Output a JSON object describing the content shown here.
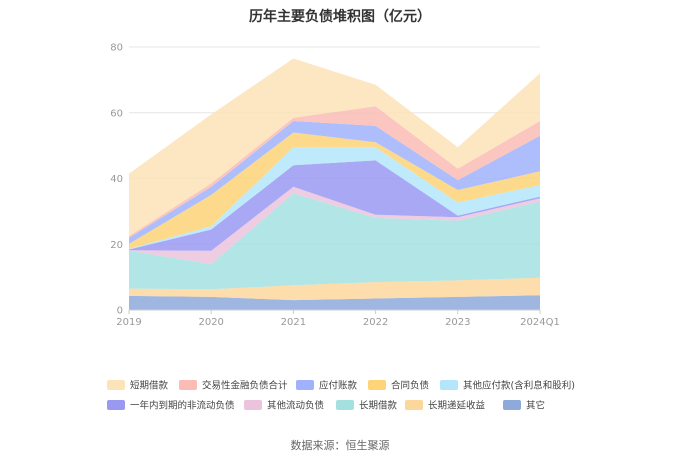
{
  "title": "历年主要负债堆积图（亿元）",
  "source": "数据来源：恒生聚源",
  "chart_data": {
    "type": "area",
    "stacked": true,
    "title": "历年主要负债堆积图（亿元）",
    "xlabel": "",
    "ylabel": "",
    "categories": [
      "2019",
      "2020",
      "2021",
      "2022",
      "2023",
      "2024Q1"
    ],
    "ylim": [
      0,
      80
    ],
    "yticks": [
      0,
      20,
      40,
      60,
      80
    ],
    "grid": true,
    "legend_position": "bottom",
    "series": [
      {
        "name": "其它",
        "color": "#8eaadb",
        "values": [
          4.3,
          4.0,
          3.0,
          3.5,
          4.0,
          4.5
        ]
      },
      {
        "name": "长期递延收益",
        "color": "#fbd79c",
        "values": [
          2.2,
          2.3,
          4.5,
          5.0,
          5.0,
          5.3
        ]
      },
      {
        "name": "长期借款",
        "color": "#a5e0e0",
        "values": [
          11.5,
          7.7,
          28.0,
          19.5,
          18.2,
          23.2
        ]
      },
      {
        "name": "其他流动负债",
        "color": "#ebc3dd",
        "values": [
          0.2,
          4.0,
          2.0,
          1.0,
          1.0,
          1.0
        ]
      },
      {
        "name": "一年内到期的非流动负债",
        "color": "#9999f2",
        "values": [
          0.2,
          6.5,
          6.5,
          16.5,
          0.5,
          0.5
        ]
      },
      {
        "name": "其他应付款(含利息和股利)",
        "color": "#b3e6fa",
        "values": [
          0.2,
          1.0,
          5.5,
          4.0,
          4.0,
          3.5
        ]
      },
      {
        "name": "合同负债",
        "color": "#fdd477",
        "values": [
          1.5,
          9.5,
          4.5,
          1.5,
          3.8,
          4.2
        ]
      },
      {
        "name": "应付账款",
        "color": "#a0b2fc",
        "values": [
          1.9,
          2.5,
          3.5,
          5.0,
          3.0,
          10.8
        ]
      },
      {
        "name": "交易性金融负债合计",
        "color": "#fbbcb5",
        "values": [
          0.5,
          1.0,
          1.0,
          6.0,
          3.5,
          4.5
        ]
      },
      {
        "name": "短期借款",
        "color": "#fde3b8",
        "values": [
          19.0,
          21.0,
          18.0,
          6.5,
          6.5,
          14.5
        ]
      }
    ],
    "legend_order": [
      "短期借款",
      "交易性金融负债合计",
      "应付账款",
      "合同负债",
      "其他应付款(含利息和股利)",
      "一年内到期的非流动负债",
      "其他流动负债",
      "长期借款",
      "长期递延收益",
      "其它"
    ]
  }
}
